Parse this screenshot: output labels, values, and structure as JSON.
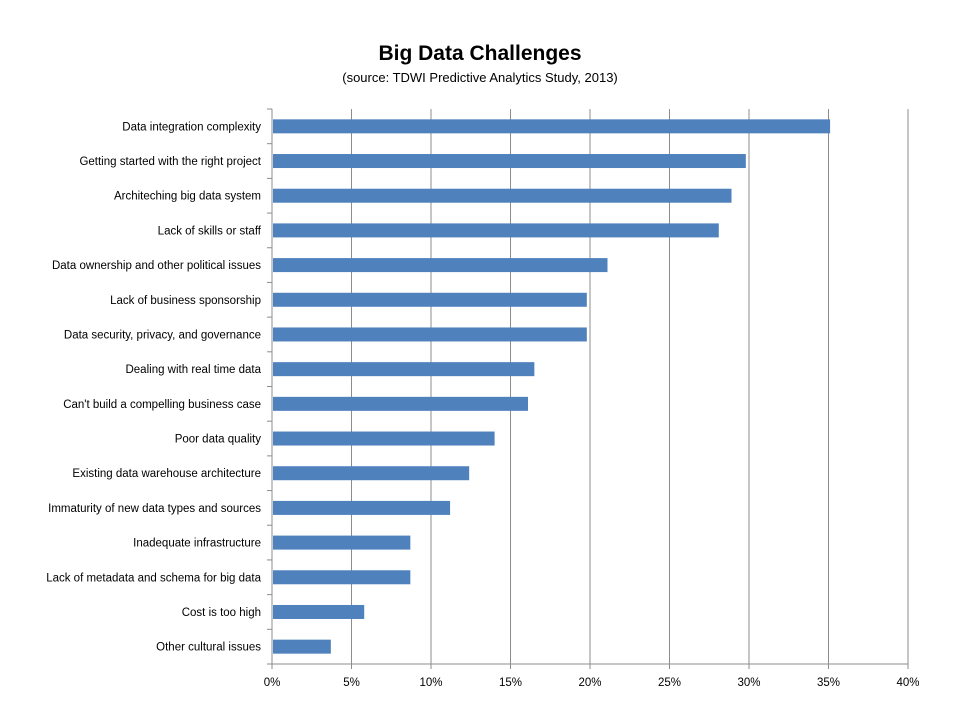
{
  "chart_data": {
    "type": "bar",
    "orientation": "horizontal",
    "title": "Big Data Challenges",
    "subtitle": "(source: TDWI Predictive Analytics Study, 2013)",
    "xlabel": "",
    "ylabel": "",
    "xlim": [
      0,
      40
    ],
    "x_ticks": [
      "0%",
      "5%",
      "10%",
      "15%",
      "20%",
      "25%",
      "30%",
      "35%",
      "40%"
    ],
    "grid": "vertical",
    "legend": "none",
    "color": "#4f81bd",
    "categories": [
      "Data integration complexity",
      "Getting started with the right project",
      "Architeching big data system",
      "Lack of skills or staff",
      "Data ownership and other political issues",
      "Lack of business sponsorship",
      "Data security, privacy, and governance",
      "Dealing with real time data",
      "Can't build a compelling business case",
      "Poor data quality",
      "Existing data warehouse architecture",
      "Immaturity of new data types and sources",
      "Inadequate infrastructure",
      "Lack of metadata and schema for big data",
      "Cost is too high",
      "Other cultural issues"
    ],
    "values": [
      35.1,
      29.8,
      28.9,
      28.1,
      21.1,
      19.8,
      19.8,
      16.5,
      16.1,
      14.0,
      12.4,
      11.2,
      8.7,
      8.7,
      5.8,
      3.7
    ]
  }
}
